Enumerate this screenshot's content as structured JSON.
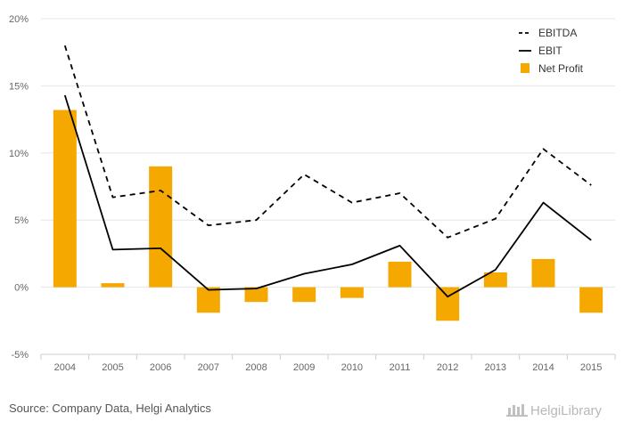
{
  "chart_data": {
    "type": "bar",
    "categories": [
      "2004",
      "2005",
      "2006",
      "2007",
      "2008",
      "2009",
      "2010",
      "2011",
      "2012",
      "2013",
      "2014",
      "2015"
    ],
    "series": [
      {
        "name": "EBITDA",
        "kind": "line",
        "style": "dashed",
        "color": "#000000",
        "values": [
          18.0,
          6.7,
          7.2,
          4.6,
          5.0,
          8.4,
          6.3,
          7.0,
          3.7,
          5.1,
          10.3,
          7.6
        ]
      },
      {
        "name": "EBIT",
        "kind": "line",
        "style": "solid",
        "color": "#000000",
        "values": [
          14.3,
          2.8,
          2.9,
          -0.2,
          -0.1,
          1.0,
          1.7,
          3.1,
          -0.7,
          1.3,
          6.3,
          3.5
        ]
      },
      {
        "name": "Net Profit",
        "kind": "bar",
        "color": "#f5a800",
        "values": [
          13.2,
          0.3,
          9.0,
          -1.9,
          -1.1,
          -1.1,
          -0.8,
          1.9,
          -2.5,
          1.1,
          2.1,
          -1.9
        ]
      }
    ],
    "ylim": [
      -5,
      20
    ],
    "yticks": [
      -5,
      0,
      5,
      10,
      15,
      20
    ],
    "ytick_labels": [
      "-5%",
      "0%",
      "5%",
      "10%",
      "15%",
      "20%"
    ],
    "grid": true,
    "legend_position": "top-right"
  },
  "footer": {
    "source": "Source: Company Data, Helgi Analytics",
    "brand": "HelgiLibrary"
  }
}
